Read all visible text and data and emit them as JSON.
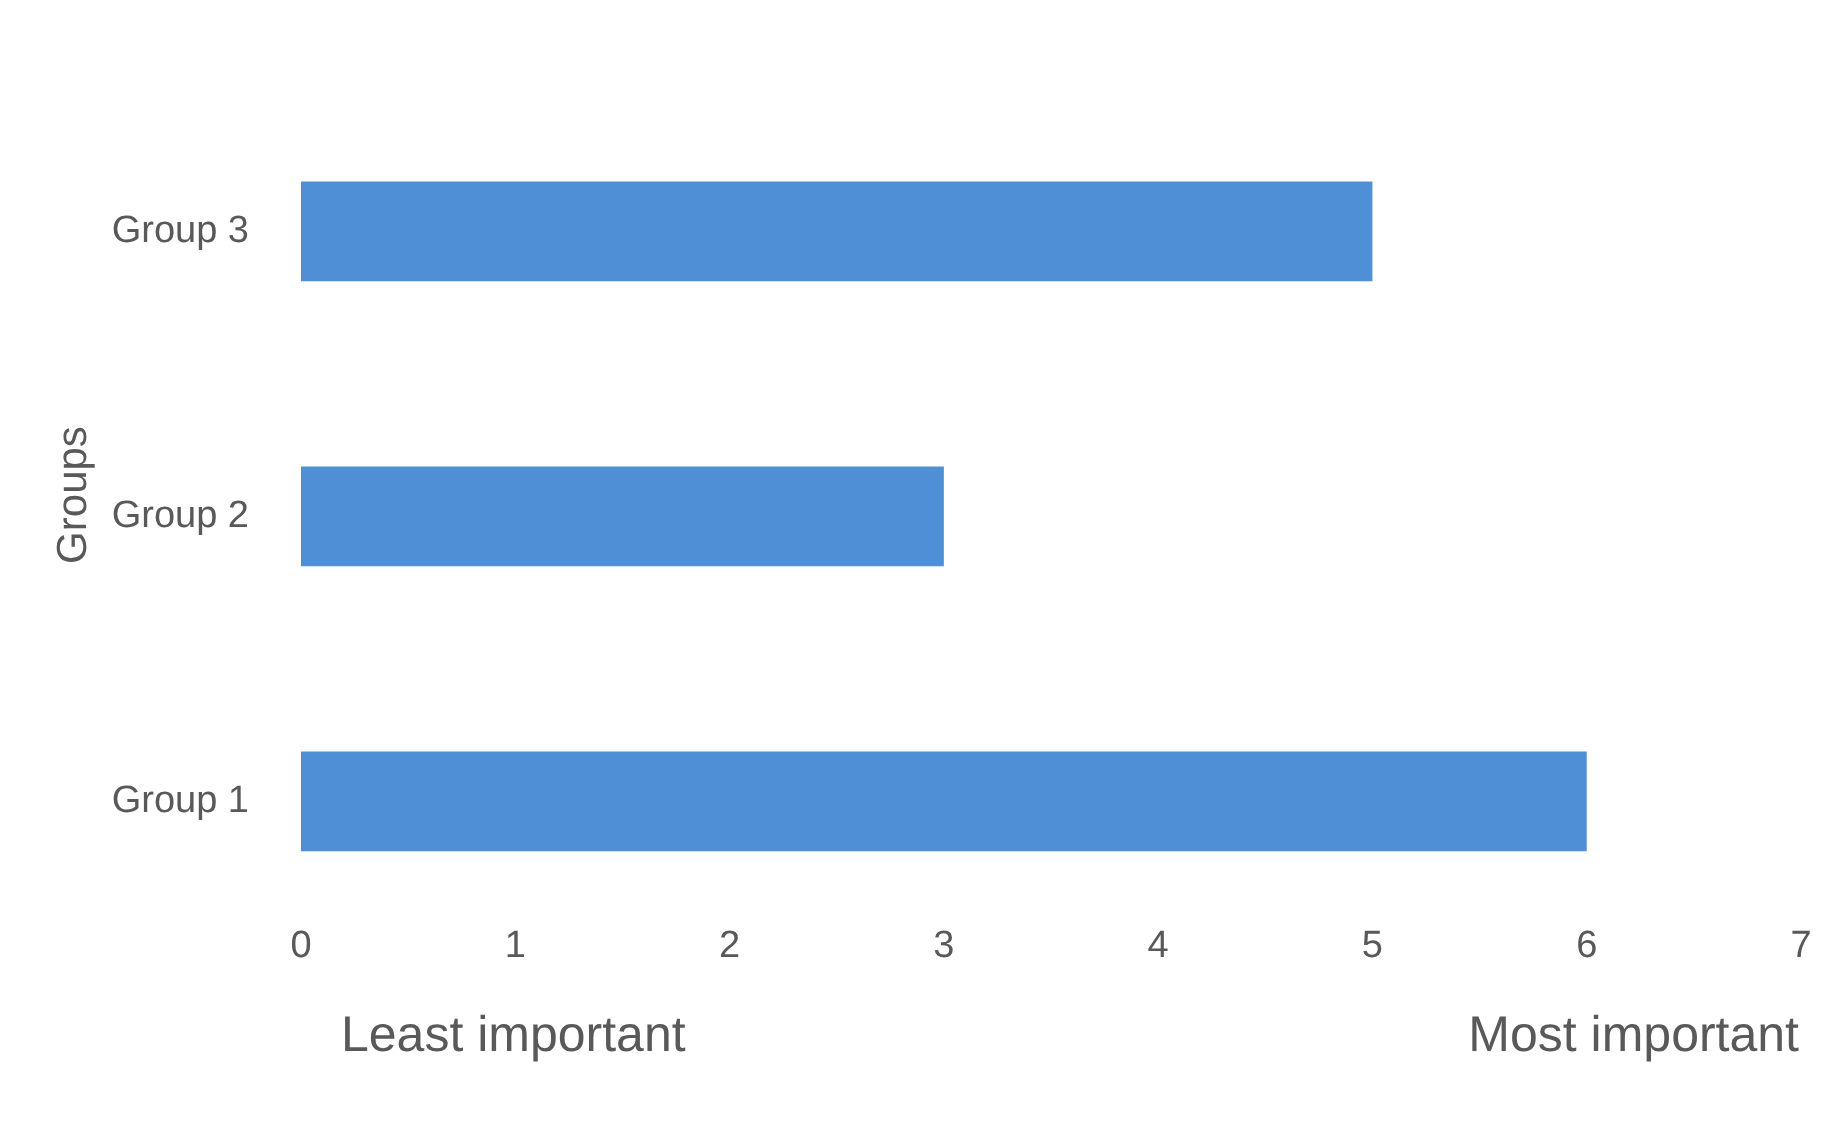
{
  "chart_data": {
    "type": "bar",
    "orientation": "horizontal",
    "ylabel": "Groups",
    "categories": [
      "Group 3",
      "Group 2",
      "Group 1"
    ],
    "values": [
      5,
      3,
      6
    ],
    "color": "#4f8fd6",
    "xlim": [
      0,
      7
    ],
    "xticks": [
      0,
      1,
      2,
      3,
      4,
      5,
      6,
      7
    ],
    "grid": false,
    "annotations": [
      "Least important",
      "Most important"
    ]
  }
}
